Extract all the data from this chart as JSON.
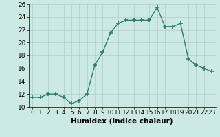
{
  "x": [
    0,
    1,
    2,
    3,
    4,
    5,
    6,
    7,
    8,
    9,
    10,
    11,
    12,
    13,
    14,
    15,
    16,
    17,
    18,
    19,
    20,
    21,
    22,
    23
  ],
  "y": [
    11.5,
    11.5,
    12.0,
    12.0,
    11.5,
    10.5,
    11.0,
    12.0,
    16.5,
    18.5,
    21.5,
    23.0,
    23.5,
    23.5,
    23.5,
    23.5,
    25.5,
    22.5,
    22.5,
    23.0,
    17.5,
    16.5,
    16.0,
    15.5
  ],
  "line_color": "#2d7d6e",
  "marker": "+",
  "marker_size": 4,
  "line_width": 1.0,
  "xlabel": "Humidex (Indice chaleur)",
  "xlabel_fontsize": 7.5,
  "xlabel_fontweight": "bold",
  "ylim": [
    10,
    26
  ],
  "xlim": [
    -0.5,
    23.5
  ],
  "yticks": [
    10,
    12,
    14,
    16,
    18,
    20,
    22,
    24,
    26
  ],
  "xtick_labels": [
    "0",
    "1",
    "2",
    "3",
    "4",
    "5",
    "6",
    "7",
    "8",
    "9",
    "10",
    "11",
    "12",
    "13",
    "14",
    "15",
    "16",
    "17",
    "18",
    "19",
    "20",
    "21",
    "22",
    "23"
  ],
  "background_color": "#cce9e4",
  "grid_color": "#b0cdc8",
  "grid_linewidth": 0.5,
  "tick_fontsize": 6.5
}
